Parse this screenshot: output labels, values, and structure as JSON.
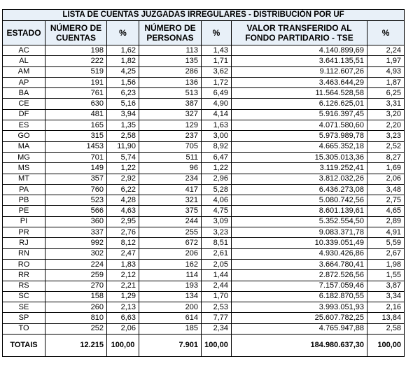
{
  "caption": "LISTA DE CUENTAS JUZGADAS IRREGULARES - DISTRIBUCIÓN POR UF",
  "columns": [
    "ESTADO",
    "NÚMERO DE CUENTAS",
    "%",
    "NÚMERO DE PERSONAS",
    "%",
    "VALOR TRANSFERIDO AL FONDO PARTIDARIO - TSE",
    "%"
  ],
  "rows": [
    [
      "AC",
      "198",
      "1,62",
      "113",
      "1,43",
      "4.140.899,69",
      "2,24"
    ],
    [
      "AL",
      "222",
      "1,82",
      "135",
      "1,71",
      "3.641.135,51",
      "1,97"
    ],
    [
      "AM",
      "519",
      "4,25",
      "286",
      "3,62",
      "9.112.607,26",
      "4,93"
    ],
    [
      "AP",
      "191",
      "1,56",
      "136",
      "1,72",
      "3.463.644,29",
      "1,87"
    ],
    [
      "BA",
      "761",
      "6,23",
      "513",
      "6,49",
      "11.564.528,58",
      "6,25"
    ],
    [
      "CE",
      "630",
      "5,16",
      "387",
      "4,90",
      "6.126.625,01",
      "3,31"
    ],
    [
      "DF",
      "481",
      "3,94",
      "327",
      "4,14",
      "5.916.397,45",
      "3,20"
    ],
    [
      "ES",
      "165",
      "1,35",
      "129",
      "1,63",
      "4.071.580,60",
      "2,20"
    ],
    [
      "GO",
      "315",
      "2,58",
      "237",
      "3,00",
      "5.973.989,78",
      "3,23"
    ],
    [
      "MA",
      "1453",
      "11,90",
      "705",
      "8,92",
      "4.665.352,18",
      "2,52"
    ],
    [
      "MG",
      "701",
      "5,74",
      "511",
      "6,47",
      "15.305.013,36",
      "8,27"
    ],
    [
      "MS",
      "149",
      "1,22",
      "96",
      "1,22",
      "3.119.252,41",
      "1,69"
    ],
    [
      "MT",
      "357",
      "2,92",
      "234",
      "2,96",
      "3.812.032,26",
      "2,06"
    ],
    [
      "PA",
      "760",
      "6,22",
      "417",
      "5,28",
      "6.436.273,08",
      "3,48"
    ],
    [
      "PB",
      "523",
      "4,28",
      "321",
      "4,06",
      "5.080.742,56",
      "2,75"
    ],
    [
      "PE",
      "566",
      "4,63",
      "375",
      "4,75",
      "8.601.139,61",
      "4,65"
    ],
    [
      "PI",
      "360",
      "2,95",
      "244",
      "3,09",
      "5.352.554,50",
      "2,89"
    ],
    [
      "PR",
      "337",
      "2,76",
      "255",
      "3,23",
      "9.083.371,78",
      "4,91"
    ],
    [
      "RJ",
      "992",
      "8,12",
      "672",
      "8,51",
      "10.339.051,49",
      "5,59"
    ],
    [
      "RN",
      "302",
      "2,47",
      "206",
      "2,61",
      "4.930.426,86",
      "2,67"
    ],
    [
      "RO",
      "224",
      "1,83",
      "162",
      "2,05",
      "3.664.780,41",
      "1,98"
    ],
    [
      "RR",
      "259",
      "2,12",
      "114",
      "1,44",
      "2.872.526,56",
      "1,55"
    ],
    [
      "RS",
      "270",
      "2,21",
      "193",
      "2,44",
      "7.157.059,46",
      "3,87"
    ],
    [
      "SC",
      "158",
      "1,29",
      "134",
      "1,70",
      "6.182.870,55",
      "3,34"
    ],
    [
      "SE",
      "260",
      "2,13",
      "200",
      "2,53",
      "3.993.051,93",
      "2,16"
    ],
    [
      "SP",
      "810",
      "6,63",
      "614",
      "7,77",
      "25.607.782,25",
      "13,84"
    ],
    [
      "TO",
      "252",
      "2,06",
      "185",
      "2,34",
      "4.765.947,88",
      "2,58"
    ]
  ],
  "totals": [
    "TOTAIS",
    "12.215",
    "100,00",
    "7.901",
    "100,00",
    "184.980.637,30",
    "100,00"
  ]
}
